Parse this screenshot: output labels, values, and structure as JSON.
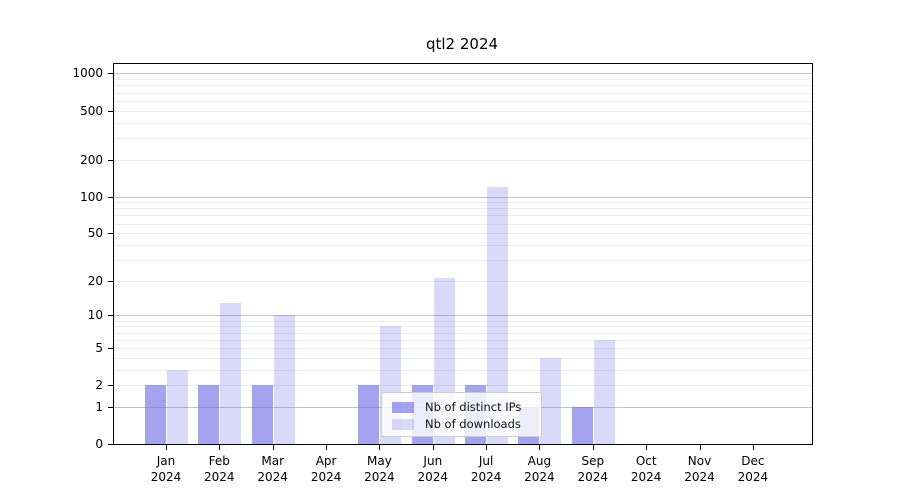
{
  "title": "qtl2 2024",
  "accent_color": "#6666e6",
  "chart_data": {
    "type": "bar",
    "title": "qtl2 2024",
    "categories": [
      "Jan 2024",
      "Feb 2024",
      "Mar 2024",
      "Apr 2024",
      "May 2024",
      "Jun 2024",
      "Jul 2024",
      "Aug 2024",
      "Sep 2024",
      "Oct 2024",
      "Nov 2024",
      "Dec 2024"
    ],
    "series": [
      {
        "name": "Nb of distinct IPs",
        "color": "rgba(102,102,230,0.6)",
        "values": [
          2,
          2,
          2,
          0,
          2,
          2,
          2,
          1,
          1,
          0,
          0,
          0
        ]
      },
      {
        "name": "Nb of downloads",
        "color": "rgba(102,102,230,0.25)",
        "values": [
          3,
          13,
          10,
          0,
          8,
          21,
          120,
          4,
          6,
          0,
          0,
          0
        ]
      }
    ],
    "yscale": "log1p",
    "ylim": [
      0,
      1200
    ],
    "yticks": [
      0,
      1,
      2,
      5,
      10,
      20,
      50,
      100,
      200,
      500,
      1000
    ],
    "major_gridlines": [
      1,
      10,
      100,
      1000
    ],
    "minor_gridlines": [
      2,
      3,
      4,
      5,
      6,
      7,
      8,
      9,
      20,
      30,
      40,
      50,
      60,
      70,
      80,
      90,
      200,
      300,
      400,
      500,
      600,
      700,
      800,
      900
    ],
    "grid": true,
    "legend_position": "lower center",
    "xlabel": "",
    "ylabel": ""
  },
  "legend": {
    "items": [
      {
        "label": "Nb of distinct IPs"
      },
      {
        "label": "Nb of downloads"
      }
    ]
  }
}
